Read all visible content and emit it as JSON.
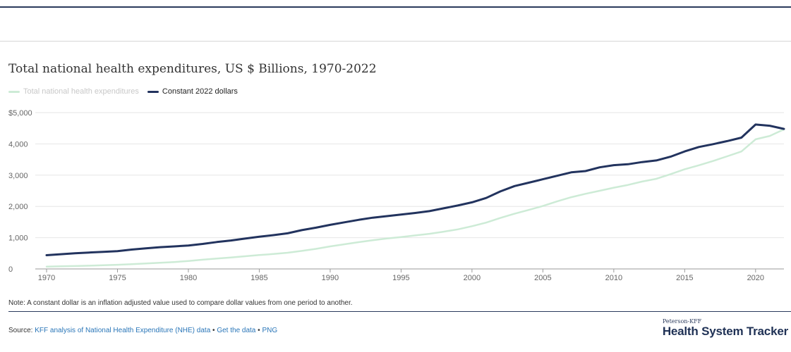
{
  "title": "Total national health expenditures, US $ Billions, 1970-2022",
  "legend": {
    "items": [
      {
        "label": "Total national health expenditures",
        "color": "#cdebd6",
        "state": "faded"
      },
      {
        "label": "Constant 2022 dollars",
        "color": "#22335e",
        "state": "active"
      }
    ]
  },
  "note": "Note: A constant dollar is an inflation adjusted value used to compare dollar values from one period to another.",
  "source": {
    "prefix": "Source: ",
    "link1": "KFF analysis of National Health Expenditure (NHE) data",
    "sep": " • ",
    "link2": "Get the data",
    "link3": "PNG"
  },
  "brand": {
    "small": "Peterson-KFF",
    "big": "Health System Tracker"
  },
  "chart_data": {
    "type": "line",
    "title": "Total national health expenditures, US $ Billions, 1970-2022",
    "xlabel": "",
    "ylabel": "",
    "xlim": [
      1970,
      2022
    ],
    "ylim": [
      0,
      5000
    ],
    "x_ticks": [
      1970,
      1975,
      1980,
      1985,
      1990,
      1995,
      2000,
      2005,
      2010,
      2015,
      2020
    ],
    "y_ticks": [
      {
        "value": 0,
        "label": "0"
      },
      {
        "value": 1000,
        "label": "1,000"
      },
      {
        "value": 2000,
        "label": "2,000"
      },
      {
        "value": 3000,
        "label": "3,000"
      },
      {
        "value": 4000,
        "label": "4,000"
      },
      {
        "value": 5000,
        "label": "$5,000"
      }
    ],
    "grid": "horizontal",
    "legend_position": "top-left",
    "x": [
      1970,
      1971,
      1972,
      1973,
      1974,
      1975,
      1976,
      1977,
      1978,
      1979,
      1980,
      1981,
      1982,
      1983,
      1984,
      1985,
      1986,
      1987,
      1988,
      1989,
      1990,
      1991,
      1992,
      1993,
      1994,
      1995,
      1996,
      1997,
      1998,
      1999,
      2000,
      2001,
      2002,
      2003,
      2004,
      2005,
      2006,
      2007,
      2008,
      2009,
      2010,
      2011,
      2012,
      2013,
      2014,
      2015,
      2016,
      2017,
      2018,
      2019,
      2020,
      2021,
      2022
    ],
    "series": [
      {
        "name": "Total national health expenditures",
        "color": "#cdebd6",
        "values": [
          75,
          83,
          93,
          103,
          117,
          133,
          153,
          173,
          195,
          221,
          255,
          295,
          333,
          368,
          405,
          443,
          477,
          517,
          577,
          641,
          721,
          788,
          855,
          920,
          972,
          1021,
          1071,
          1125,
          1191,
          1265,
          1366,
          1482,
          1631,
          1765,
          1888,
          2014,
          2161,
          2295,
          2404,
          2499,
          2600,
          2688,
          2794,
          2882,
          3032,
          3190,
          3315,
          3452,
          3603,
          3757,
          4146,
          4255,
          4464
        ]
      },
      {
        "name": "Constant 2022 dollars",
        "color": "#22335e",
        "values": [
          440,
          470,
          500,
          525,
          545,
          570,
          620,
          660,
          695,
          720,
          750,
          800,
          860,
          910,
          970,
          1030,
          1080,
          1140,
          1240,
          1320,
          1410,
          1490,
          1570,
          1640,
          1690,
          1740,
          1790,
          1850,
          1940,
          2030,
          2130,
          2270,
          2480,
          2650,
          2760,
          2870,
          2980,
          3090,
          3130,
          3250,
          3320,
          3350,
          3420,
          3470,
          3590,
          3760,
          3900,
          3990,
          4090,
          4200,
          4620,
          4580,
          4480
        ]
      }
    ]
  }
}
